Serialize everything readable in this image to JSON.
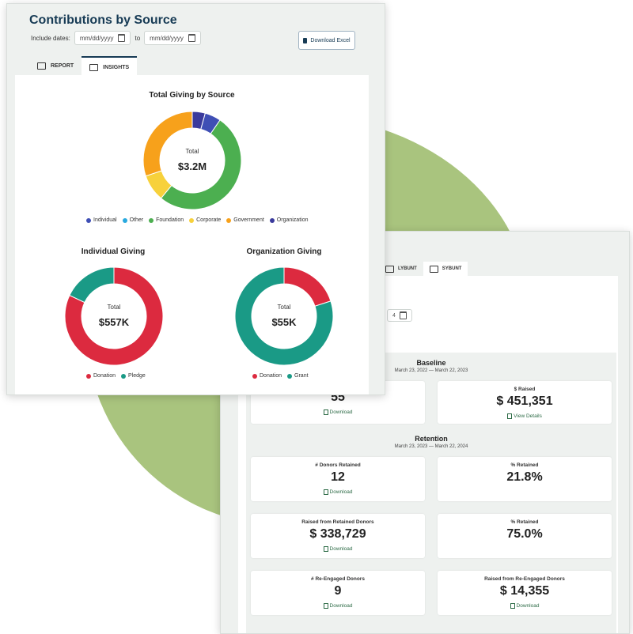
{
  "front": {
    "title": "Contributions by Source",
    "include_dates_label": "Include dates:",
    "date_from_placeholder": "mm/dd/yyyy",
    "to_label": "to",
    "date_to_placeholder": "mm/dd/yyyy",
    "download_excel": "Download Excel",
    "tabs": [
      {
        "label": "REPORT",
        "icon": "report-icon"
      },
      {
        "label": "INSIGHTS",
        "icon": "insights-icon"
      }
    ]
  },
  "chart_data": [
    {
      "type": "pie",
      "title": "Total Giving by Source",
      "center_label": "Total",
      "center_value": "$3.2M",
      "categories": [
        "Individual",
        "Other",
        "Foundation",
        "Corporate",
        "Government",
        "Organization"
      ],
      "values": [
        1.5,
        0.0,
        14.5,
        2.5,
        8.5,
        1.2
      ],
      "order_clockwise_from_top": [
        "Organization",
        "Individual",
        "Other",
        "Foundation",
        "Corporate",
        "Government"
      ],
      "colors": [
        "#3f4fb5",
        "#29a9df",
        "#4caf50",
        "#f7d13b",
        "#f7a11b",
        "#3a3a9c"
      ],
      "legend_position": "bottom"
    },
    {
      "type": "pie",
      "title": "Individual Giving",
      "center_label": "Total",
      "center_value": "$557K",
      "categories": [
        "Donation",
        "Pledge"
      ],
      "values": [
        82,
        18
      ],
      "colors": [
        "#dc2a3f",
        "#1a9a86"
      ],
      "legend_position": "bottom"
    },
    {
      "type": "pie",
      "title": "Organization Giving",
      "center_label": "Total",
      "center_value": "$55K",
      "categories": [
        "Donation",
        "Grant"
      ],
      "values": [
        20,
        80
      ],
      "colors": [
        "#dc2a3f",
        "#1a9a86"
      ],
      "legend_position": "bottom"
    }
  ],
  "back": {
    "tabs": [
      {
        "label": "LYBUNT",
        "icon": "lybunt-icon"
      },
      {
        "label": "SYBUNT",
        "icon": "sybunt-icon"
      }
    ],
    "partial_date_text": "4",
    "baseline": {
      "title": "Baseline",
      "range": "March 23, 2022 — March 22, 2023",
      "cards": [
        {
          "label": "",
          "value": "55",
          "link": "Download",
          "link_icon": "download-icon"
        },
        {
          "label": "$ Raised",
          "value": "$  451,351",
          "link": "View Details",
          "link_icon": "external-link-icon"
        }
      ]
    },
    "retention": {
      "title": "Retention",
      "range": "March 23, 2023 — March 22, 2024",
      "cards": [
        {
          "label": "# Donors Retained",
          "value": "12",
          "link": "Download"
        },
        {
          "label": "% Retained",
          "value": "21.8%",
          "link": ""
        },
        {
          "label": "Raised from Retained Donors",
          "value": "$  338,729",
          "link": "Download"
        },
        {
          "label": "% Retained",
          "value": "75.0%",
          "link": ""
        },
        {
          "label": "# Re-Engaged Donors",
          "value": "9",
          "link": "Download"
        },
        {
          "label": "Raised from Re-Engaged Donors",
          "value": "$  14,355",
          "link": "Download"
        }
      ]
    }
  }
}
